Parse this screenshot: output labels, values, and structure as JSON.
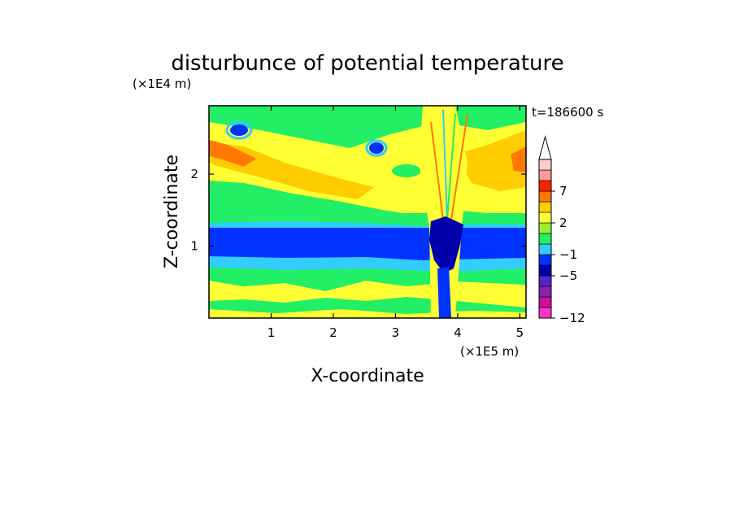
{
  "chart_data": {
    "type": "heatmap",
    "title": "disturbunce of potential temperature",
    "xlabel": "X-coordinate",
    "ylabel": "Z-coordinate",
    "x_unit": "(×1E5 m)",
    "y_unit": "(×1E4 m)",
    "time_label": "t=186600 s",
    "xlim": [
      0,
      5.1
    ],
    "ylim": [
      0,
      2.95
    ],
    "x_ticks": [
      "1",
      "2",
      "3",
      "4",
      "5"
    ],
    "x_tick_values": [
      1,
      2,
      3,
      4,
      5
    ],
    "y_ticks": [
      "1",
      "2"
    ],
    "y_tick_values": [
      1,
      2
    ],
    "colorbar": {
      "levels": [
        -12,
        -11,
        -9,
        -7,
        -5,
        -3,
        -1,
        0,
        1,
        2,
        3,
        5,
        7,
        9,
        11
      ],
      "colors": [
        "#ff33cc",
        "#cc1199",
        "#8822aa",
        "#5522cc",
        "#0000aa",
        "#0033ff",
        "#33ccff",
        "#22ee66",
        "#99ee33",
        "#ffff33",
        "#ffcc00",
        "#ff7700",
        "#ff2200",
        "#ff9999",
        "#ffcccc"
      ],
      "labeled_ticks": [
        "7",
        "2",
        "−1",
        "−5",
        "−12"
      ],
      "labeled_values": [
        7,
        2,
        -1,
        -5,
        -12
      ],
      "extend": "max"
    }
  }
}
